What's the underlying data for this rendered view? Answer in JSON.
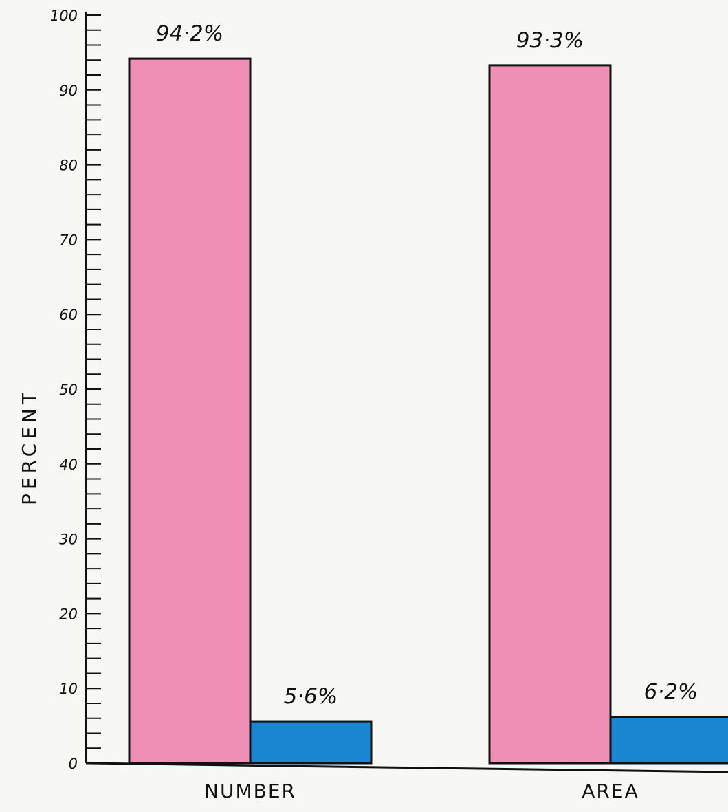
{
  "chart_data": {
    "type": "bar",
    "ylabel": "PERCENT",
    "xlabel": "",
    "ylim": [
      0,
      100
    ],
    "yticks": [
      0,
      10,
      20,
      30,
      40,
      50,
      60,
      70,
      80,
      90,
      100
    ],
    "minor_tick_step": 2,
    "grid": false,
    "categories": [
      "NUMBER",
      "AREA"
    ],
    "series": [
      {
        "values": [
          94.2,
          93.3
        ],
        "value_labels": [
          "94·2%",
          "93·3%"
        ],
        "color": "#ef8fb6"
      },
      {
        "values": [
          5.6,
          6.2
        ],
        "value_labels": [
          "5·6%",
          "6·2%"
        ],
        "color": "#1a86d1"
      }
    ]
  }
}
